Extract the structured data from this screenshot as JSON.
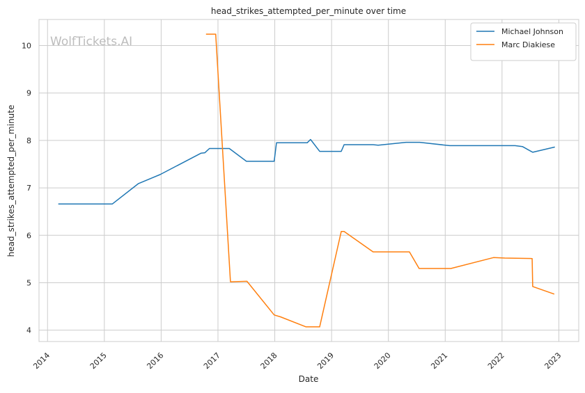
{
  "chart_data": {
    "type": "line",
    "title": "head_strikes_attempted_per_minute over time",
    "xlabel": "Date",
    "ylabel": "head_strikes_attempted_per_minute",
    "watermark": "WolfTickets.AI",
    "x_ticks": [
      "2014",
      "2015",
      "2016",
      "2017",
      "2018",
      "2019",
      "2020",
      "2021",
      "2022",
      "2023"
    ],
    "y_ticks": [
      "4",
      "5",
      "6",
      "7",
      "8",
      "9",
      "10"
    ],
    "xlim": [
      2013.85,
      2023.35
    ],
    "ylim": [
      3.76,
      10.55
    ],
    "grid": true,
    "legend_position": "top-right",
    "series": [
      {
        "name": "Michael Johnson",
        "color": "#1f77b4",
        "x": [
          2014.19,
          2015.14,
          2015.6,
          2015.98,
          2016.7,
          2016.77,
          2016.85,
          2017.2,
          2017.5,
          2017.99,
          2018.03,
          2018.57,
          2018.63,
          2018.79,
          2019.17,
          2019.22,
          2019.73,
          2019.82,
          2020.31,
          2020.55,
          2021.08,
          2021.46,
          2021.8,
          2022.23,
          2022.36,
          2022.54,
          2022.93
        ],
        "y": [
          6.66,
          6.66,
          7.09,
          7.28,
          7.73,
          7.74,
          7.83,
          7.83,
          7.56,
          7.56,
          7.95,
          7.95,
          8.02,
          7.77,
          7.77,
          7.91,
          7.91,
          7.9,
          7.96,
          7.96,
          7.89,
          7.89,
          7.89,
          7.89,
          7.87,
          7.75,
          7.86
        ]
      },
      {
        "name": "Marc Diakiese",
        "color": "#ff7f0e",
        "x": [
          2016.79,
          2016.96,
          2017.22,
          2017.51,
          2017.99,
          2018.1,
          2018.55,
          2018.79,
          2019.17,
          2019.22,
          2019.73,
          2020.37,
          2020.54,
          2021.1,
          2021.85,
          2022.05,
          2022.53,
          2022.54,
          2022.92
        ],
        "y": [
          10.24,
          10.24,
          5.02,
          5.03,
          4.32,
          4.28,
          4.07,
          4.07,
          6.08,
          6.08,
          5.65,
          5.65,
          5.3,
          5.3,
          5.53,
          5.52,
          5.51,
          4.92,
          4.76
        ]
      }
    ]
  }
}
